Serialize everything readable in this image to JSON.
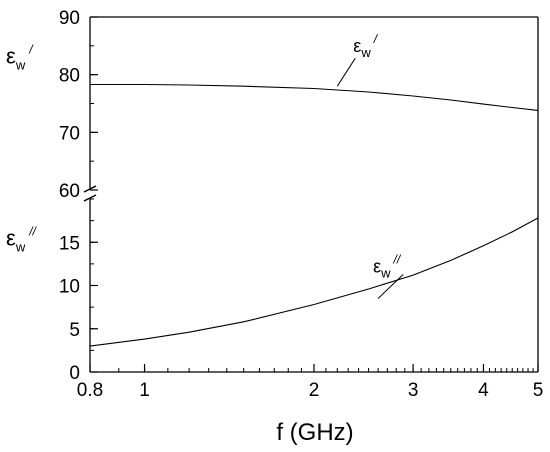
{
  "chart_data": {
    "type": "line",
    "xlabel": "f (GHz)",
    "x_scale": "log",
    "xlim": [
      0.8,
      5
    ],
    "x_ticks": [
      {
        "value": 0.8,
        "label": "0.8"
      },
      {
        "value": 1,
        "label": "1"
      },
      {
        "value": 2,
        "label": "2"
      },
      {
        "value": 3,
        "label": "3"
      },
      {
        "value": 4,
        "label": "4"
      },
      {
        "value": 5,
        "label": "5"
      }
    ],
    "y_axis_break": true,
    "panels": [
      {
        "id": "upper",
        "ylabel": {
          "base": "ε",
          "sub": "w",
          "sup": "/"
        },
        "ylim": [
          60,
          90
        ],
        "y_ticks": [
          {
            "value": 60,
            "label": "60"
          },
          {
            "value": 70,
            "label": "70"
          },
          {
            "value": 80,
            "label": "80"
          },
          {
            "value": 90,
            "label": "90"
          }
        ],
        "series": [
          {
            "x": [
              0.8,
              1.0,
              1.2,
              1.5,
              2.0,
              2.5,
              3.0,
              3.5,
              4.0,
              4.5,
              5.0
            ],
            "y": [
              78.3,
              78.3,
              78.2,
              78.0,
              77.6,
              77.0,
              76.3,
              75.6,
              74.9,
              74.3,
              73.8
            ]
          }
        ],
        "annotation": {
          "base": "ε",
          "sub": "w",
          "sup": "/",
          "x": 2.2,
          "y": 78.0
        }
      },
      {
        "id": "lower",
        "ylabel": {
          "base": "ε",
          "sub": "w",
          "sup": "//"
        },
        "ylim": [
          0,
          20
        ],
        "y_ticks": [
          {
            "value": 0,
            "label": "0"
          },
          {
            "value": 5,
            "label": "5"
          },
          {
            "value": 10,
            "label": "10"
          },
          {
            "value": 15,
            "label": "15"
          }
        ],
        "series": [
          {
            "x": [
              0.8,
              1.0,
              1.2,
              1.5,
              2.0,
              2.5,
              3.0,
              3.5,
              4.0,
              4.5,
              5.0
            ],
            "y": [
              3.0,
              3.8,
              4.6,
              5.8,
              7.8,
              9.6,
              11.2,
              12.9,
              14.6,
              16.2,
              17.8
            ]
          }
        ],
        "annotation": {
          "base": "ε",
          "sub": "w",
          "sup": "//",
          "x": 2.6,
          "y": 8.5
        }
      }
    ]
  }
}
